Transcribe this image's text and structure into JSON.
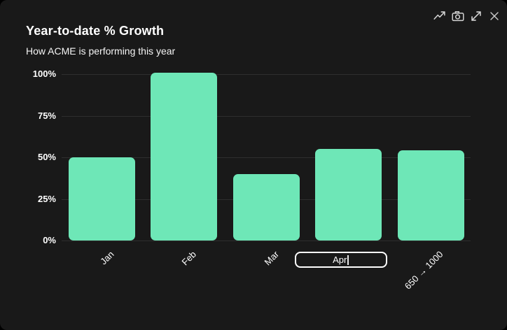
{
  "window": {
    "background": "#000000",
    "panel_background": "#191919",
    "accent": "#6ee7b7"
  },
  "header": {
    "title": "Year-to-date % Growth",
    "subtitle": "How ACME is performing this year"
  },
  "toolbar": {
    "buttons": [
      {
        "name": "trend-line",
        "icon": "trending-up-icon"
      },
      {
        "name": "snapshot",
        "icon": "camera-icon"
      },
      {
        "name": "expand",
        "icon": "expand-arrows-icon"
      },
      {
        "name": "close",
        "icon": "close-icon"
      }
    ]
  },
  "chart_data": {
    "type": "bar",
    "title": "Year-to-date % Growth",
    "subtitle": "How ACME is performing this year",
    "categories": [
      "Jan",
      "Feb",
      "Mar",
      "Apr",
      "650 → 1000"
    ],
    "values": [
      50,
      101,
      40,
      55,
      54
    ],
    "unit": "%",
    "xlabel": "",
    "ylabel": "",
    "yticks": [
      0,
      25,
      50,
      75,
      100
    ],
    "ytick_labels": [
      "0%",
      "25%",
      "50%",
      "75%",
      "100%"
    ],
    "ylim": [
      0,
      104
    ],
    "grid": true,
    "legend": false,
    "bar_color": "#6ee7b7",
    "gridline_color": "#2e2e2e",
    "label_rotation_deg": -45,
    "editing_label": {
      "index": 3,
      "value": "Apr"
    }
  }
}
